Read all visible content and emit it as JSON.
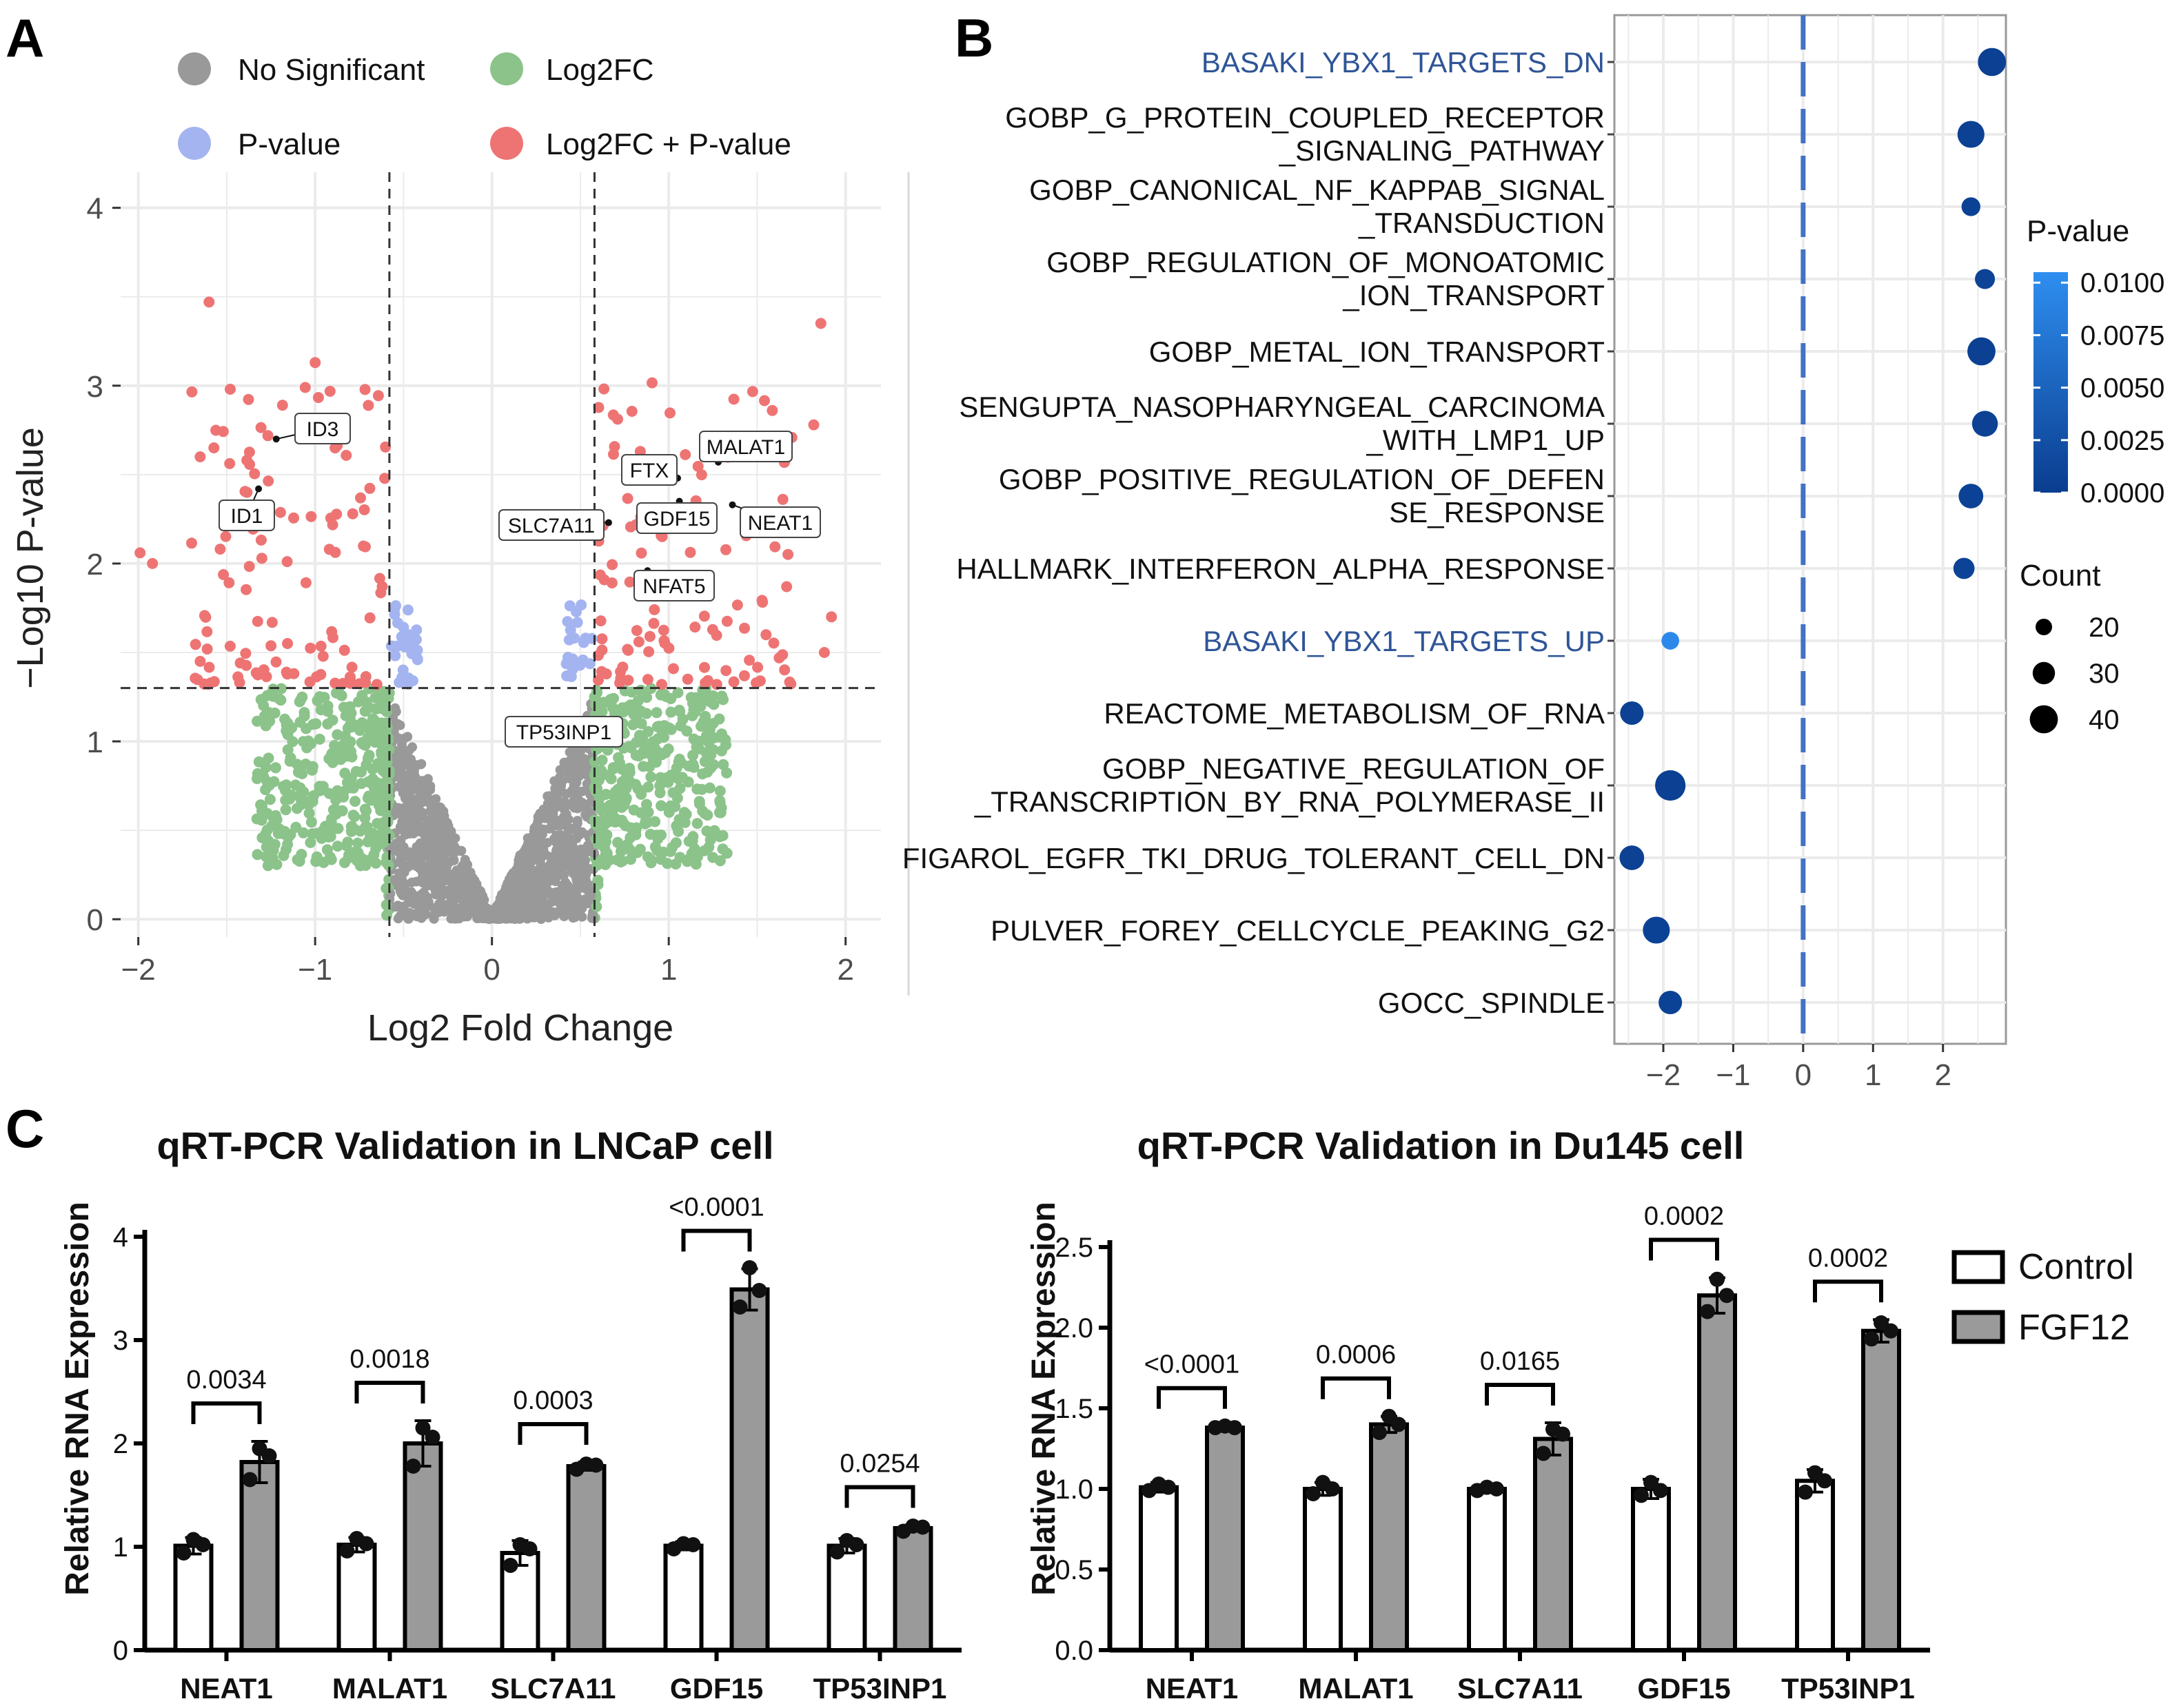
{
  "panels": {
    "a": "A",
    "b": "B",
    "c": "C"
  },
  "colors": {
    "ns": "#999999",
    "fc": "#8bc38a",
    "pv": "#a4b4f0",
    "both": "#ee7474",
    "grid": "#ebebeb",
    "dot_dark": "#0a3d8f",
    "dot_light": "#2e8ef0",
    "bar_fgf12": "#9a9a9a",
    "bar_control": "#ffffff",
    "zero_line": "#4472c4"
  },
  "chart_data": [
    {
      "id": "A",
      "type": "scatter",
      "title": "",
      "xlabel": "Log2 Fold Change",
      "ylabel": "−Log10 P-value",
      "xlim": [
        -2.1,
        2.2
      ],
      "ylim": [
        -0.1,
        4.2
      ],
      "xticks": [
        -2,
        -1,
        0,
        1,
        2
      ],
      "xtick_labels": [
        "−2",
        "−1",
        "0",
        "1",
        "2"
      ],
      "yticks": [
        0,
        1,
        2,
        3,
        4
      ],
      "thresholds": {
        "log2fc": [
          -0.58,
          0.58
        ],
        "neglog10p": 1.3
      },
      "legend": [
        {
          "key": "ns",
          "label": "No Significant"
        },
        {
          "key": "fc",
          "label": "Log2FC"
        },
        {
          "key": "pv",
          "label": "P-value"
        },
        {
          "key": "both",
          "label": "Log2FC + P-value"
        }
      ],
      "labeled_genes": [
        {
          "gene": "ID3",
          "x": -1.22,
          "y": 2.7
        },
        {
          "gene": "ID1",
          "x": -1.32,
          "y": 2.42
        },
        {
          "gene": "FTX",
          "x": 1.05,
          "y": 2.48
        },
        {
          "gene": "MALAT1",
          "x": 1.28,
          "y": 2.57
        },
        {
          "gene": "GDF15",
          "x": 1.06,
          "y": 2.35
        },
        {
          "gene": "NEAT1",
          "x": 1.36,
          "y": 2.33
        },
        {
          "gene": "SLC7A11",
          "x": 0.66,
          "y": 2.23
        },
        {
          "gene": "NFAT5",
          "x": 0.88,
          "y": 1.96
        },
        {
          "gene": "TP53INP1",
          "x": 0.5,
          "y": 1.1
        }
      ]
    },
    {
      "id": "B",
      "type": "scatter",
      "title": "",
      "xlabel": "",
      "ylabel": "",
      "xlim": [
        -2.7,
        2.9
      ],
      "xticks": [
        -2,
        -1,
        0,
        1,
        2
      ],
      "xtick_labels": [
        "−2",
        "−1",
        "0",
        "1",
        "2"
      ],
      "color_legend_title": "P-value",
      "color_range": [
        0.0,
        0.0105
      ],
      "color_ticks": [
        "0.0100",
        "0.0075",
        "0.0050",
        "0.0025",
        "0.0000"
      ],
      "size_legend_title": "Count",
      "size_ticks": [
        20,
        30,
        40
      ],
      "terms": [
        {
          "line1": "BASAKI_YBX1_TARGETS_DN",
          "line2": "",
          "highlight": true,
          "x": 2.7,
          "pvalue": 0.0004,
          "count": 40
        },
        {
          "line1": "GOBP_G_PROTEIN_COUPLED_RECEPTOR",
          "line2": "_SIGNALING_PATHWAY",
          "highlight": false,
          "x": 2.4,
          "pvalue": 0.0005,
          "count": 38
        },
        {
          "line1": "GOBP_CANONICAL_NF_KAPPAB_SIGNAL",
          "line2": "_TRANSDUCTION",
          "highlight": false,
          "x": 2.4,
          "pvalue": 0.0006,
          "count": 24
        },
        {
          "line1": "GOBP_REGULATION_OF_MONOATOMIC",
          "line2": "_ION_TRANSPORT",
          "highlight": false,
          "x": 2.6,
          "pvalue": 0.0008,
          "count": 26
        },
        {
          "line1": "GOBP_METAL_ION_TRANSPORT",
          "line2": "",
          "highlight": false,
          "x": 2.55,
          "pvalue": 0.0004,
          "count": 40
        },
        {
          "line1": "SENGUPTA_NASOPHARYNGEAL_CARCINOMA",
          "line2": "_WITH_LMP1_UP",
          "highlight": false,
          "x": 2.6,
          "pvalue": 0.0005,
          "count": 36
        },
        {
          "line1": "GOBP_POSITIVE_REGULATION_OF_DEFEN",
          "line2": "SE_RESPONSE",
          "highlight": false,
          "x": 2.4,
          "pvalue": 0.0006,
          "count": 34
        },
        {
          "line1": "HALLMARK_INTERFERON_ALPHA_RESPONSE",
          "line2": "",
          "highlight": false,
          "x": 2.3,
          "pvalue": 0.0008,
          "count": 28
        },
        {
          "line1": "BASAKI_YBX1_TARGETS_UP",
          "line2": "",
          "highlight": true,
          "x": -1.9,
          "pvalue": 0.0098,
          "count": 22
        },
        {
          "line1": "REACTOME_METABOLISM_OF_RNA",
          "line2": "",
          "highlight": false,
          "x": -2.45,
          "pvalue": 0.0005,
          "count": 32
        },
        {
          "line1": "GOBP_NEGATIVE_REGULATION_OF",
          "line2": "_TRANSCRIPTION_BY_RNA_POLYMERASE_II",
          "highlight": false,
          "x": -1.9,
          "pvalue": 0.0004,
          "count": 44
        },
        {
          "line1": "FIGAROL_EGFR_TKI_DRUG_TOLERANT_CELL_DN",
          "line2": "",
          "highlight": false,
          "x": -2.45,
          "pvalue": 0.0005,
          "count": 34
        },
        {
          "line1": "PULVER_FOREY_CELLCYCLE_PEAKING_G2",
          "line2": "",
          "highlight": false,
          "x": -2.1,
          "pvalue": 0.0006,
          "count": 38
        },
        {
          "line1": "GOCC_SPINDLE",
          "line2": "",
          "highlight": false,
          "x": -1.9,
          "pvalue": 0.0007,
          "count": 32
        }
      ]
    },
    {
      "id": "C1",
      "type": "bar",
      "title": "qRT-PCR Validation in LNCaP cell",
      "ylabel": "Relative RNA Expression",
      "ylim": [
        0,
        4
      ],
      "yticks": [
        0,
        1,
        2,
        3,
        4
      ],
      "categories": [
        "NEAT1",
        "MALAT1",
        "SLC7A11",
        "GDF15",
        "TP53INP1"
      ],
      "series": [
        {
          "name": "Control",
          "values": [
            1.01,
            1.02,
            0.94,
            1.01,
            1.01
          ],
          "sd": [
            0.08,
            0.07,
            0.12,
            0.04,
            0.07
          ],
          "points": [
            [
              0.94,
              1.07,
              1.02
            ],
            [
              0.96,
              1.08,
              1.03
            ],
            [
              0.82,
              1.02,
              0.98
            ],
            [
              0.98,
              1.03,
              1.02
            ],
            [
              0.95,
              1.06,
              1.02
            ]
          ]
        },
        {
          "name": "FGF12",
          "values": [
            1.82,
            2.0,
            1.78,
            3.49,
            1.18
          ],
          "sd": [
            0.2,
            0.22,
            0.04,
            0.2,
            0.03
          ],
          "points": [
            [
              1.65,
              1.95,
              1.88
            ],
            [
              1.78,
              2.15,
              2.06
            ],
            [
              1.75,
              1.8,
              1.79
            ],
            [
              3.32,
              3.7,
              3.48
            ],
            [
              1.15,
              1.2,
              1.19
            ]
          ]
        }
      ],
      "p_values": [
        "0.0034",
        "0.0018",
        "0.0003",
        "<0.0001",
        "0.0254"
      ]
    },
    {
      "id": "C2",
      "type": "bar",
      "title": "qRT-PCR Validation in Du145 cell",
      "ylabel": "Relative RNA Expression",
      "ylim": [
        0,
        2.5
      ],
      "yticks": [
        0,
        0.5,
        1,
        1.5,
        2,
        2.5
      ],
      "ytick_labels": [
        "0.0",
        "0.5",
        "1.0",
        "1.5",
        "2.0",
        "2.5"
      ],
      "categories": [
        "NEAT1",
        "MALAT1",
        "SLC7A11",
        "GDF15",
        "TP53INP1"
      ],
      "series": [
        {
          "name": "Control",
          "values": [
            1.01,
            1.0,
            1.0,
            1.0,
            1.05
          ],
          "sd": [
            0.03,
            0.04,
            0.02,
            0.06,
            0.07
          ],
          "points": [
            [
              0.99,
              1.03,
              1.01
            ],
            [
              0.97,
              1.04,
              1.0
            ],
            [
              0.99,
              1.01,
              1.0
            ],
            [
              0.96,
              1.04,
              0.99
            ],
            [
              0.98,
              1.1,
              1.05
            ]
          ]
        },
        {
          "name": "FGF12",
          "values": [
            1.38,
            1.4,
            1.31,
            2.2,
            1.98
          ],
          "sd": [
            0.01,
            0.05,
            0.1,
            0.11,
            0.07
          ],
          "points": [
            [
              1.38,
              1.39,
              1.38
            ],
            [
              1.35,
              1.45,
              1.4
            ],
            [
              1.22,
              1.37,
              1.34
            ],
            [
              2.1,
              2.3,
              2.2
            ],
            [
              1.93,
              2.03,
              1.98
            ]
          ]
        }
      ],
      "p_values": [
        "<0.0001",
        "0.0006",
        "0.0165",
        "0.0002",
        "0.0002"
      ],
      "legend": [
        "Control",
        "FGF12"
      ]
    }
  ]
}
